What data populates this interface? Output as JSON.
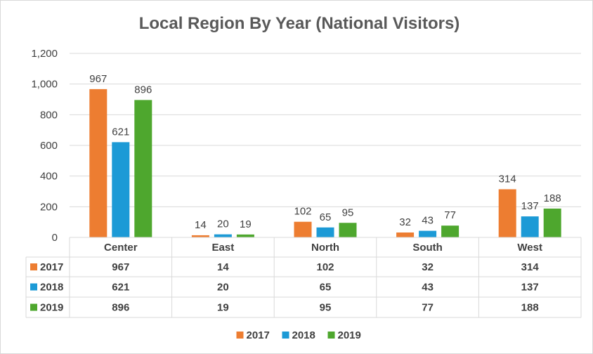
{
  "chart_data": {
    "type": "bar",
    "title": "Local Region By Year (National Visitors)",
    "categories": [
      "Center",
      "East",
      "North",
      "South",
      "West"
    ],
    "series": [
      {
        "name": "2017",
        "color": "#ED7D31",
        "values": [
          967,
          14,
          102,
          32,
          314
        ]
      },
      {
        "name": "2018",
        "color": "#1C9AD6",
        "values": [
          621,
          20,
          65,
          43,
          137
        ]
      },
      {
        "name": "2019",
        "color": "#4EA72E",
        "values": [
          896,
          19,
          95,
          77,
          188
        ]
      }
    ],
    "ylim": [
      0,
      1200
    ],
    "yticks": [
      0,
      200,
      400,
      600,
      800,
      1000,
      1200
    ],
    "ytick_labels": [
      "0",
      "200",
      "400",
      "600",
      "800",
      "1,000",
      "1,200"
    ],
    "grid": true,
    "data_table": true,
    "legend_position": "bottom"
  }
}
